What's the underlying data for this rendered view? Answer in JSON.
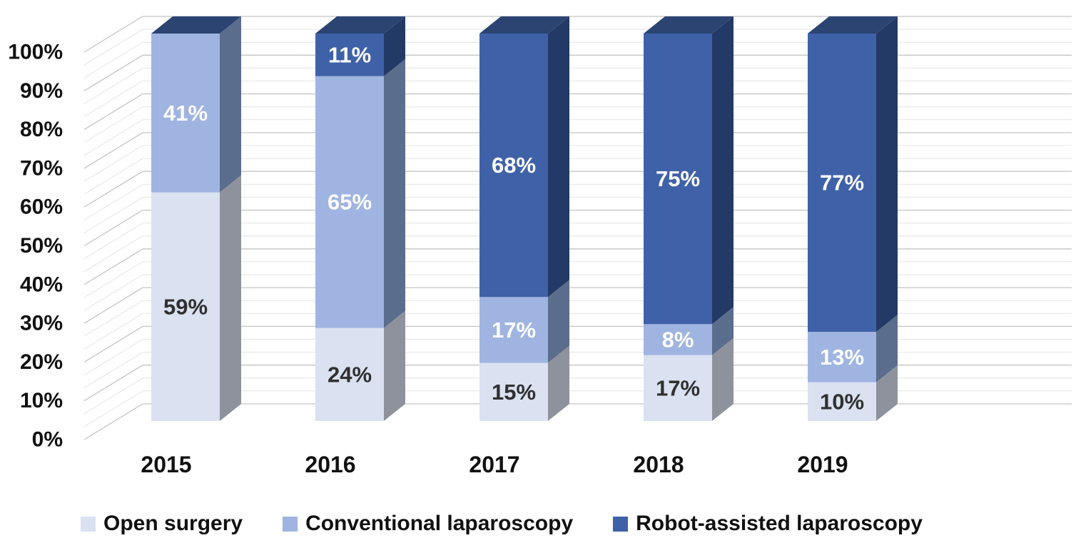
{
  "chart_data": {
    "type": "bar",
    "variant": "3d-stacked-percent-column",
    "title": "",
    "xlabel": "",
    "ylabel": "",
    "categories": [
      "2015",
      "2016",
      "2017",
      "2018",
      "2019"
    ],
    "series": [
      {
        "name": "Open surgery",
        "values": [
          59,
          24,
          15,
          17,
          10
        ],
        "front_color": "#dae1f1",
        "side_color": "#8e929d",
        "label_color": "#303030"
      },
      {
        "name": "Conventional laparoscopy",
        "values": [
          41,
          65,
          17,
          8,
          13
        ],
        "front_color": "#9fb4e0",
        "side_color": "#5b6d8c",
        "label_color": "#ffffff"
      },
      {
        "name": "Robot-assisted laparoscopy",
        "values": [
          0,
          11,
          68,
          75,
          77
        ],
        "front_color": "#3f61a8",
        "side_color": "#233a66",
        "top_color": "#2b4471",
        "label_color": "#ffffff"
      }
    ],
    "data_label_suffix": "%",
    "y_axis": {
      "min": 0,
      "max": 100,
      "major_unit": 10,
      "minor_divisions_per_major": 3,
      "tick_labels": [
        "0%",
        "10%",
        "20%",
        "30%",
        "40%",
        "50%",
        "60%",
        "70%",
        "80%",
        "90%",
        "100%"
      ]
    },
    "grid": {
      "major_color": "#c4c4c4",
      "minor_color": "#e4e4e4",
      "visible": true
    },
    "legend_position": "bottom",
    "axis_text_color": "#111111"
  }
}
